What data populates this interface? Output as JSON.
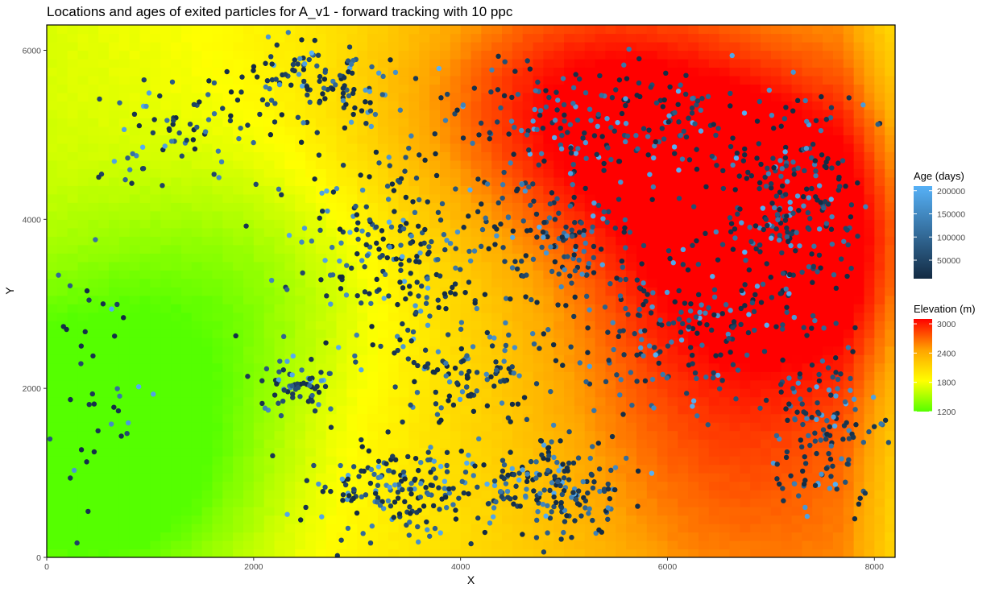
{
  "chart_data": {
    "type": "scatter",
    "title": "Locations and ages of exited particles for A_v1 - forward tracking with 10 ppc",
    "xlabel": "X",
    "ylabel": "Y",
    "xlim": [
      0,
      8200
    ],
    "ylim": [
      0,
      6300
    ],
    "x_ticks": [
      0,
      2000,
      4000,
      6000,
      8000
    ],
    "y_ticks": [
      0,
      2000,
      4000,
      6000
    ],
    "x_tick_labels": [
      "0",
      "2000",
      "4000",
      "6000",
      "8000"
    ],
    "y_tick_labels": [
      "0",
      "2000",
      "4000",
      "6000"
    ],
    "grid": false,
    "legend_position": "right",
    "background_raster": {
      "variable": "Elevation (m)",
      "colors": [
        "#55ff00",
        "#ffff00",
        "#ffa500",
        "#ff0000"
      ],
      "range": [
        1200,
        3100
      ],
      "hot_spots": [
        {
          "x": 6000,
          "y": 4900,
          "elev": 2900
        },
        {
          "x": 5000,
          "y": 5600,
          "elev": 2650
        },
        {
          "x": 7200,
          "y": 4100,
          "elev": 2750
        },
        {
          "x": 7400,
          "y": 3300,
          "elev": 2650
        },
        {
          "x": 6100,
          "y": 2400,
          "elev": 2500
        },
        {
          "x": 6600,
          "y": 600,
          "elev": 2450
        },
        {
          "x": 4300,
          "y": 5200,
          "elev": 2250
        }
      ],
      "cold_spots": [
        {
          "x": 300,
          "y": 1700,
          "elev": 1200
        },
        {
          "x": 1800,
          "y": 3200,
          "elev": 1350
        },
        {
          "x": 800,
          "y": 700,
          "elev": 1300
        }
      ]
    },
    "points_layer": {
      "variable": "Age (days)",
      "point_color_dark": "#132b43",
      "point_color_light": "#56b1f7",
      "age_range": [
        10000,
        210000
      ],
      "clusters": [
        {
          "x": 5400,
          "y": 5100,
          "n": 230,
          "sx": 1400,
          "sy": 700
        },
        {
          "x": 7200,
          "y": 4200,
          "n": 220,
          "sx": 700,
          "sy": 1100
        },
        {
          "x": 6000,
          "y": 2700,
          "n": 200,
          "sx": 1100,
          "sy": 900
        },
        {
          "x": 3300,
          "y": 3600,
          "n": 230,
          "sx": 900,
          "sy": 1100
        },
        {
          "x": 2600,
          "y": 5600,
          "n": 140,
          "sx": 800,
          "sy": 500
        },
        {
          "x": 3400,
          "y": 800,
          "n": 180,
          "sx": 800,
          "sy": 500
        },
        {
          "x": 4900,
          "y": 900,
          "n": 180,
          "sx": 700,
          "sy": 500
        },
        {
          "x": 2400,
          "y": 2000,
          "n": 60,
          "sx": 300,
          "sy": 250
        },
        {
          "x": 7500,
          "y": 1500,
          "n": 140,
          "sx": 500,
          "sy": 900
        },
        {
          "x": 1200,
          "y": 5000,
          "n": 60,
          "sx": 600,
          "sy": 600
        },
        {
          "x": 4100,
          "y": 2200,
          "n": 110,
          "sx": 700,
          "sy": 600
        },
        {
          "x": 4900,
          "y": 3800,
          "n": 130,
          "sx": 700,
          "sy": 700
        },
        {
          "x": 500,
          "y": 2000,
          "n": 40,
          "sx": 500,
          "sy": 1600
        }
      ]
    },
    "legends": [
      {
        "title": "Age (days)",
        "type": "gradient",
        "colors": [
          "#132b43",
          "#56b1f7"
        ],
        "range": [
          10000,
          210000
        ],
        "tick_values": [
          50000,
          100000,
          150000,
          200000
        ],
        "labels": [
          "50000",
          "100000",
          "150000",
          "200000"
        ]
      },
      {
        "title": "Elevation (m)",
        "type": "gradient",
        "colors": [
          "#55ff00",
          "#ffff00",
          "#ffa500",
          "#ff0000"
        ],
        "range": [
          1200,
          3100
        ],
        "tick_values": [
          1200,
          1800,
          2400,
          3000
        ],
        "labels": [
          "1200",
          "1800",
          "2400",
          "3000"
        ]
      }
    ]
  }
}
